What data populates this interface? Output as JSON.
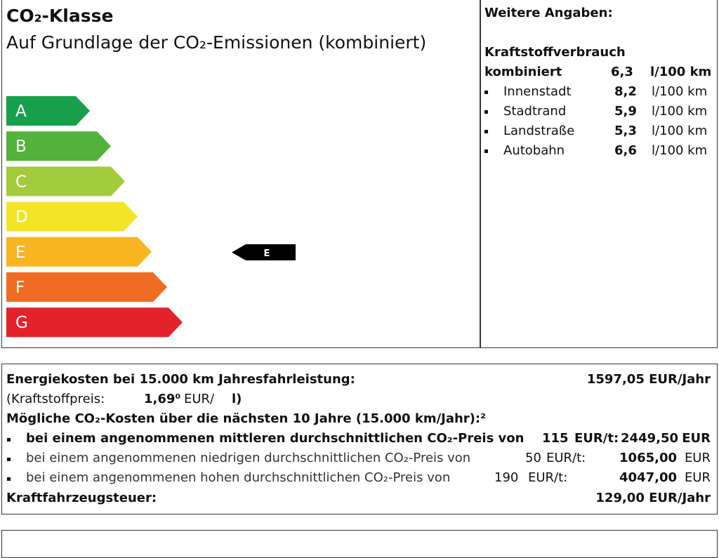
{
  "header": {
    "title": "CO₂-Klasse",
    "subtitle": "Auf Grundlage der CO₂-Emissionen (kombiniert)"
  },
  "classes": [
    {
      "label": "A",
      "color": "#17a04b"
    },
    {
      "label": "B",
      "color": "#52b23a"
    },
    {
      "label": "C",
      "color": "#a3cb3c"
    },
    {
      "label": "D",
      "color": "#f2e526"
    },
    {
      "label": "E",
      "color": "#f7b521"
    },
    {
      "label": "F",
      "color": "#ef6c25"
    },
    {
      "label": "G",
      "color": "#e3222c"
    }
  ],
  "indicator": {
    "label": "E"
  },
  "details": {
    "title": "Weitere Angaben:",
    "heading": "Kraftstoffverbrauch",
    "combined": {
      "label": "kombiniert",
      "value": "6,3",
      "unit": "l/100 km"
    },
    "rows": [
      {
        "label": "Innenstadt",
        "value": "8,2",
        "unit": "l/100 km"
      },
      {
        "label": "Stadtrand",
        "value": "5,9",
        "unit": "l/100 km"
      },
      {
        "label": "Landstraße",
        "value": "5,3",
        "unit": "l/100 km"
      },
      {
        "label": "Autobahn",
        "value": "6,6",
        "unit": "l/100 km"
      }
    ]
  },
  "costs": {
    "energy": {
      "label": "Energiekosten bei 15.000 km Jahresfahrleistung:",
      "value": "1597,05 EUR/Jahr"
    },
    "fuel_price": {
      "label": "(Kraftstoffpreis:",
      "value": "1,69⁰",
      "unit": "EUR/",
      "unit2": "l)"
    },
    "co2_heading": "Mögliche CO₂-Kosten über die nächsten 10 Jahre (15.000 km/Jahr):²",
    "co2_rows": [
      {
        "text": "bei einem angenommenen mittleren durchschnittlichen CO₂-Preis von",
        "price": "115",
        "unit": "EUR/t:",
        "amount": "2449,50",
        "currency": "EUR"
      },
      {
        "text": "bei einem angenommenen niedrigen durchschnittlichen CO₂-Preis von",
        "price": "50",
        "unit": "EUR/t:",
        "amount": "1065,00",
        "currency": "EUR"
      },
      {
        "text": "bei einem angenommenen hohen durchschnittlichen CO₂-Preis von",
        "price": "190",
        "unit": "EUR/t:",
        "amount": "4047,00",
        "currency": "EUR"
      }
    ],
    "tax": {
      "label": "Kraftfahrzeugsteuer:",
      "value": "129,00 EUR/Jahr"
    }
  }
}
